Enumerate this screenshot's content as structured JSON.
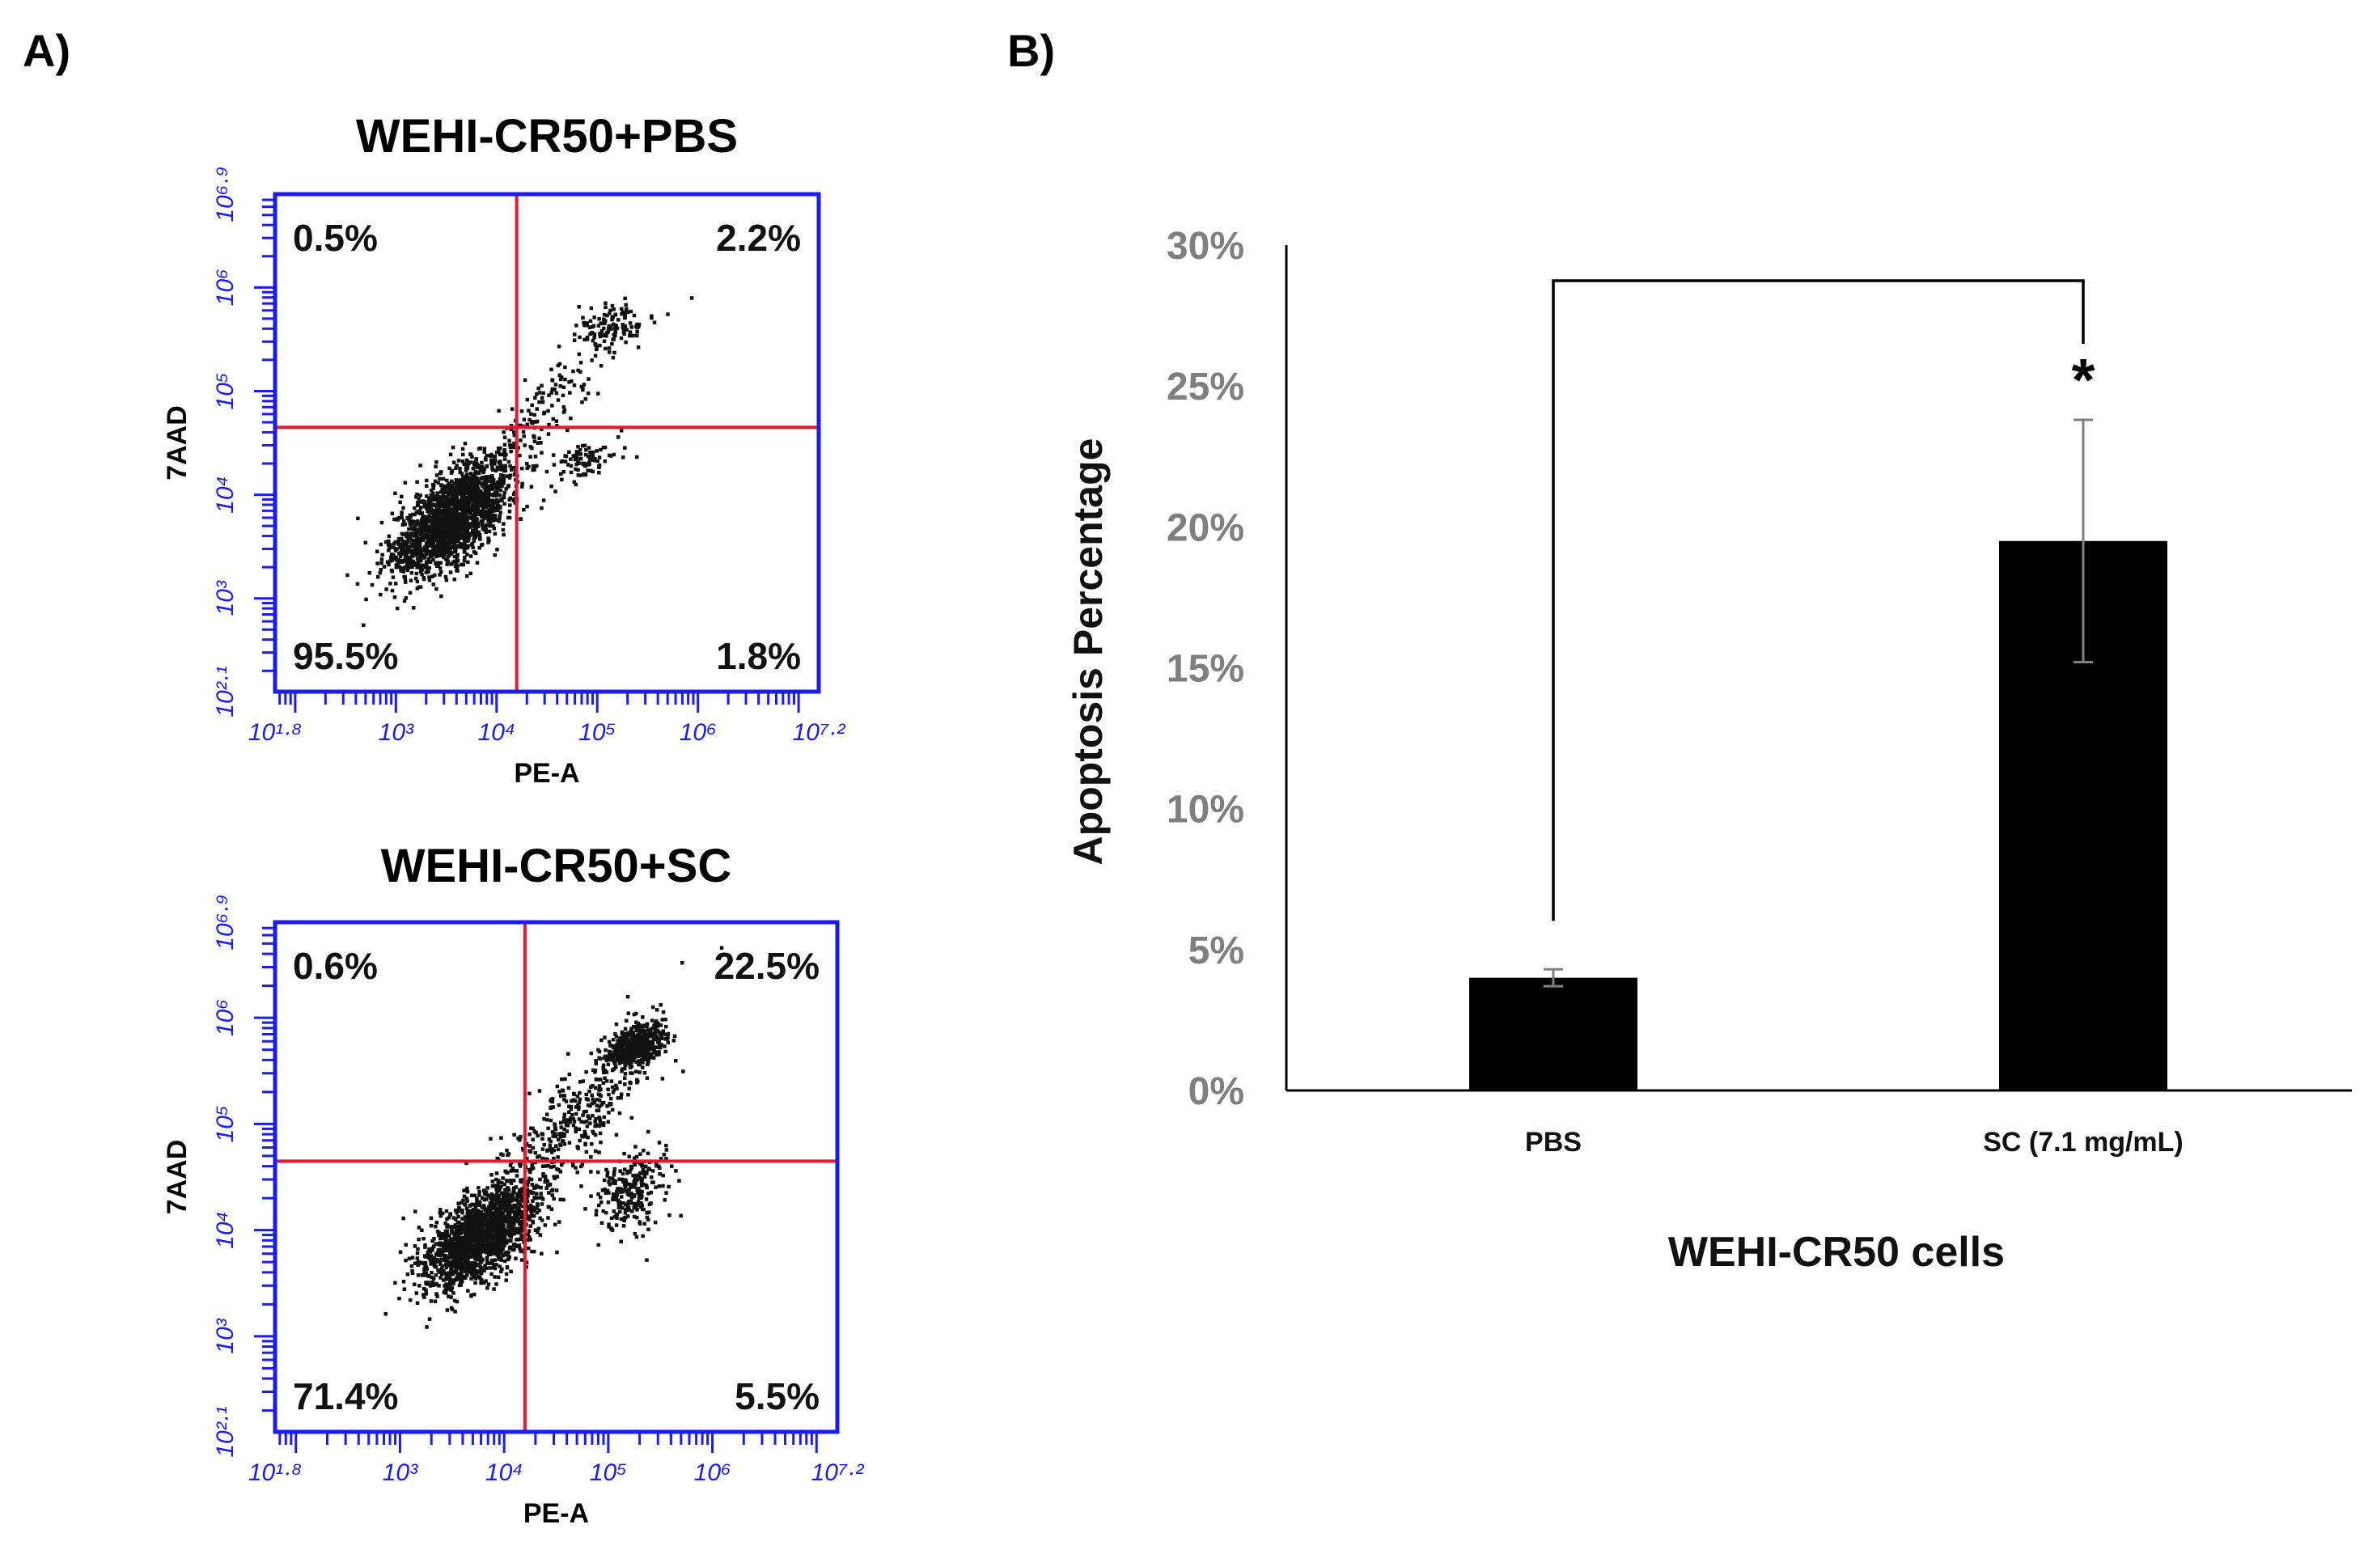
{
  "panel_labels": {
    "a": "A)",
    "b": "B)"
  },
  "colors": {
    "plot_frame": "#1a1aff",
    "gate_line": "#e8192c",
    "dots": "#111111",
    "bar_fill": "#000000",
    "axis_text": "#7f7f7f",
    "error_bar": "#808080"
  },
  "chart_data": [
    {
      "type": "scatter",
      "title": "WEHI-CR50+PBS",
      "xlabel": "PE-A",
      "ylabel": "7AAD",
      "x_scale": "log",
      "y_scale": "log",
      "xlim": [
        1.8,
        7.2
      ],
      "ylim": [
        2.1,
        6.9
      ],
      "x_tick_labels": [
        "10^1.8",
        "10^3",
        "10^4",
        "10^5",
        "10^6",
        "10^7.2"
      ],
      "y_tick_labels": [
        "10^2.1",
        "10^3",
        "10^4",
        "10^5",
        "10^6",
        "10^6.9"
      ],
      "gate": {
        "x": 4.2,
        "y": 4.65
      },
      "quadrants": {
        "upper_left": "0.5%",
        "upper_right": "2.2%",
        "lower_left": "95.5%",
        "lower_right": "1.8%"
      },
      "populations": [
        {
          "name": "live",
          "cx": 3.55,
          "cy": 3.8,
          "sx": 0.3,
          "sy": 0.28,
          "rho": 0.65,
          "n": 1900
        },
        {
          "name": "late-apoptotic",
          "cx": 5.1,
          "cy": 5.65,
          "sx": 0.17,
          "sy": 0.1,
          "rho": 0.3,
          "n": 110
        },
        {
          "name": "early-apoptotic",
          "cx": 4.85,
          "cy": 4.35,
          "sx": 0.16,
          "sy": 0.1,
          "rho": 0.3,
          "n": 90
        },
        {
          "name": "bridge",
          "cx": 4.5,
          "cy": 4.9,
          "sx": 0.45,
          "sy": 0.45,
          "rho": 0.9,
          "n": 160
        }
      ]
    },
    {
      "type": "scatter",
      "title": "WEHI-CR50+SC",
      "xlabel": "PE-A",
      "ylabel": "7AAD",
      "x_scale": "log",
      "y_scale": "log",
      "xlim": [
        1.8,
        7.2
      ],
      "ylim": [
        2.1,
        6.9
      ],
      "x_tick_labels": [
        "10^1.8",
        "10^3",
        "10^4",
        "10^5",
        "10^6",
        "10^7.2"
      ],
      "y_tick_labels": [
        "10^2.1",
        "10^3",
        "10^4",
        "10^5",
        "10^6",
        "10^6.9"
      ],
      "gate": {
        "x": 4.2,
        "y": 4.65
      },
      "quadrants": {
        "upper_left": "0.6%",
        "upper_right": "22.5%",
        "lower_left": "71.4%",
        "lower_right": "5.5%"
      },
      "populations": [
        {
          "name": "live",
          "cx": 3.75,
          "cy": 3.95,
          "sx": 0.28,
          "sy": 0.25,
          "rho": 0.6,
          "n": 1700
        },
        {
          "name": "late-apoptotic",
          "cx": 5.25,
          "cy": 5.75,
          "sx": 0.14,
          "sy": 0.1,
          "rho": 0.3,
          "n": 520
        },
        {
          "name": "early-apoptotic",
          "cx": 5.2,
          "cy": 4.4,
          "sx": 0.15,
          "sy": 0.2,
          "rho": 0.2,
          "n": 260
        },
        {
          "name": "bridge",
          "cx": 4.6,
          "cy": 5.0,
          "sx": 0.45,
          "sy": 0.45,
          "rho": 0.85,
          "n": 420
        }
      ]
    },
    {
      "type": "bar",
      "categories": [
        "PBS",
        "SC (7.1 mg/mL)"
      ],
      "values": [
        4.0,
        19.5
      ],
      "errors": [
        0.3,
        4.3
      ],
      "ylim": [
        0,
        30
      ],
      "y_ticks": [
        0,
        5,
        10,
        15,
        20,
        25,
        30
      ],
      "y_tick_labels": [
        "0%",
        "5%",
        "10%",
        "15%",
        "20%",
        "25%",
        "30%"
      ],
      "ylabel": "Apoptosis Percentage",
      "xlabel": "WEHI-CR50 cells",
      "significance": {
        "from": 0,
        "to": 1,
        "label": "*"
      }
    }
  ]
}
